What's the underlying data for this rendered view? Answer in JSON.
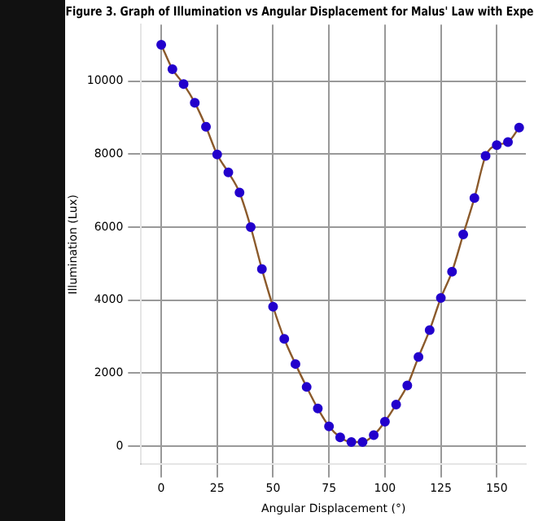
{
  "chart_data": {
    "type": "line",
    "title": "Figure 3. Graph of Illumination vs Angular Displacement for Malus' Law with Expe",
    "xlabel": "Angular Displacement (°)",
    "ylabel": "Illumination (Lux)",
    "x": [
      0,
      5,
      10,
      15,
      20,
      25,
      30,
      35,
      40,
      45,
      50,
      55,
      60,
      65,
      70,
      75,
      80,
      85,
      90,
      95,
      100,
      105,
      110,
      115,
      120,
      125,
      130,
      135,
      140,
      145,
      150,
      155,
      160
    ],
    "series": [
      {
        "color": "#8b5a2b",
        "marker": "none",
        "values": [
          11000,
          10330,
          9920,
          9410,
          8750,
          7990,
          7500,
          6950,
          6000,
          4850,
          3820,
          2940,
          2250,
          1620,
          1030,
          540,
          240,
          110,
          110,
          300,
          670,
          1140,
          1660,
          2440,
          3180,
          4060,
          4780,
          5800,
          6800,
          7950,
          8250,
          8330,
          8730
        ]
      },
      {
        "type": "scatter",
        "color": "#2200cc",
        "marker": "circle",
        "values": [
          11000,
          10330,
          9920,
          9410,
          8750,
          7990,
          7500,
          6950,
          6000,
          4850,
          3820,
          2940,
          2250,
          1620,
          1030,
          540,
          240,
          110,
          110,
          300,
          670,
          1140,
          1660,
          2440,
          3180,
          4060,
          4780,
          5800,
          6800,
          7950,
          8250,
          8330,
          8730
        ]
      }
    ],
    "xlim": [
      -9,
      163
    ],
    "xticks": [
      0,
      25,
      50,
      75,
      100,
      125,
      150
    ],
    "ylim": [
      -500,
      11550
    ],
    "yticks": [
      0,
      2000,
      4000,
      6000,
      8000,
      10000
    ],
    "grid": true,
    "legend": false
  }
}
